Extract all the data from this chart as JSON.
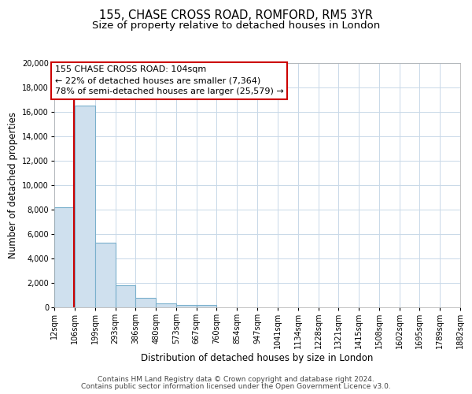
{
  "title": "155, CHASE CROSS ROAD, ROMFORD, RM5 3YR",
  "subtitle": "Size of property relative to detached houses in London",
  "xlabel": "Distribution of detached houses by size in London",
  "ylabel": "Number of detached properties",
  "bin_edges": [
    12,
    106,
    199,
    293,
    386,
    480,
    573,
    667,
    760,
    854,
    947,
    1041,
    1134,
    1228,
    1321,
    1415,
    1508,
    1602,
    1695,
    1789,
    1882
  ],
  "bar_heights": [
    8200,
    16500,
    5300,
    1800,
    800,
    300,
    200,
    200,
    0,
    0,
    0,
    0,
    0,
    0,
    0,
    0,
    0,
    0,
    0,
    0
  ],
  "bar_color": "#cfe0ee",
  "bar_edgecolor": "#7ab0cc",
  "property_size": 104,
  "property_line_color": "#cc0000",
  "annotation_line1": "155 CHASE CROSS ROAD: 104sqm",
  "annotation_line2": "← 22% of detached houses are smaller (7,364)",
  "annotation_line3": "78% of semi-detached houses are larger (25,579) →",
  "annotation_box_color": "#ffffff",
  "annotation_box_edgecolor": "#cc0000",
  "ylim": [
    0,
    20000
  ],
  "yticks": [
    0,
    2000,
    4000,
    6000,
    8000,
    10000,
    12000,
    14000,
    16000,
    18000,
    20000
  ],
  "grid_color": "#c8d8e8",
  "footer_line1": "Contains HM Land Registry data © Crown copyright and database right 2024.",
  "footer_line2": "Contains public sector information licensed under the Open Government Licence v3.0.",
  "title_fontsize": 10.5,
  "subtitle_fontsize": 9.5,
  "axis_label_fontsize": 8.5,
  "tick_fontsize": 7,
  "annotation_fontsize": 8,
  "footer_fontsize": 6.5
}
